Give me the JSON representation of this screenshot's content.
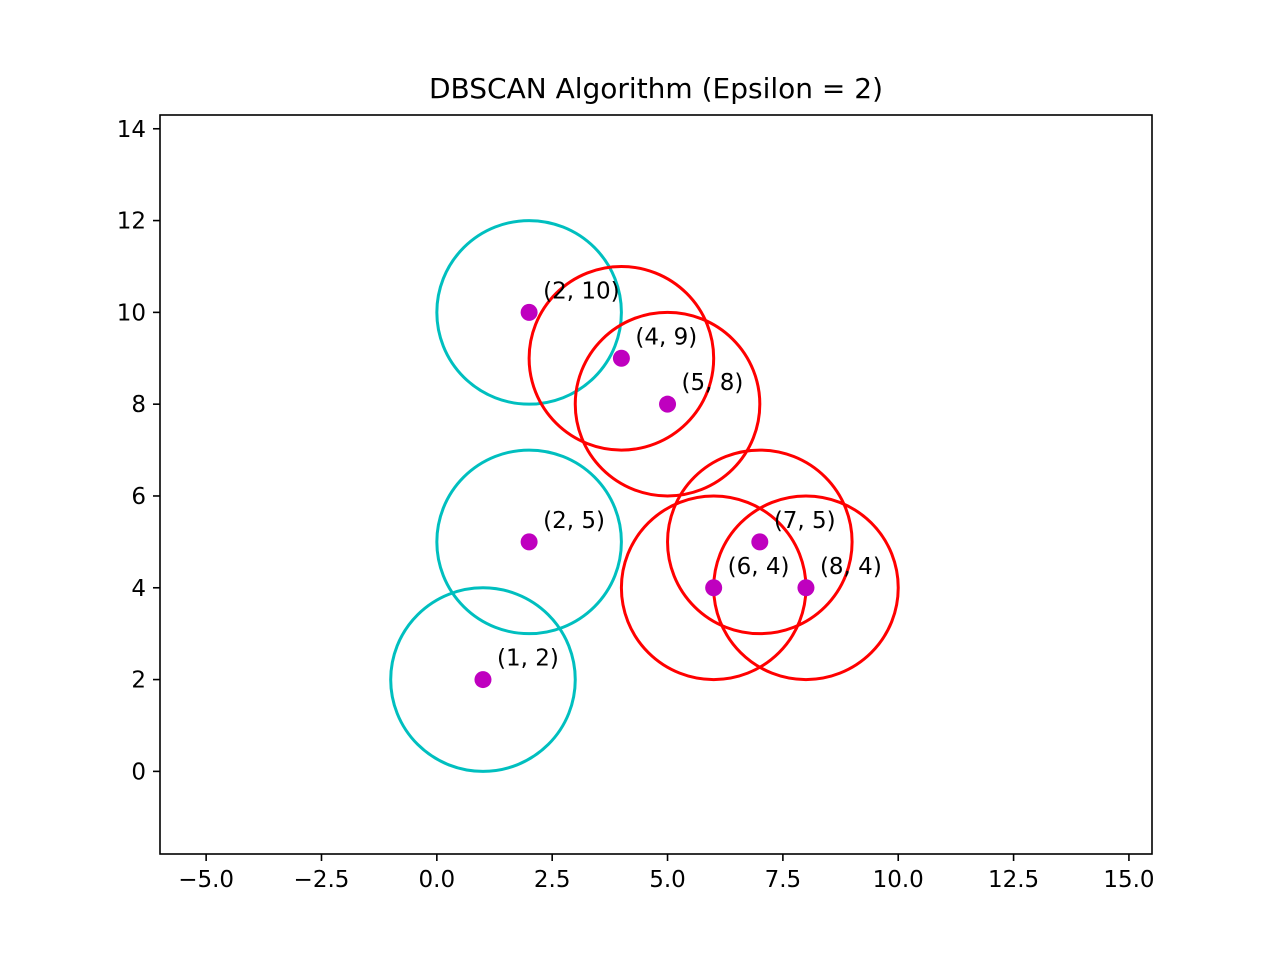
{
  "chart_data": {
    "type": "scatter",
    "title": "DBSCAN Algorithm (Epsilon = 2)",
    "xlabel": "",
    "ylabel": "",
    "epsilon": 2,
    "xlim": [
      -6.0,
      15.5
    ],
    "ylim": [
      -1.8,
      14.3
    ],
    "xticks": [
      -5.0,
      -2.5,
      0.0,
      2.5,
      5.0,
      7.5,
      10.0,
      12.5,
      15.0
    ],
    "xtick_labels": [
      "−5.0",
      "−2.5",
      "0.0",
      "2.5",
      "5.0",
      "7.5",
      "10.0",
      "12.5",
      "15.0"
    ],
    "yticks": [
      0,
      2,
      4,
      6,
      8,
      10,
      12,
      14
    ],
    "ytick_labels": [
      "0",
      "2",
      "4",
      "6",
      "8",
      "10",
      "12",
      "14"
    ],
    "grid": false,
    "point_color": "#bf00bf",
    "points": [
      {
        "x": 2,
        "y": 10,
        "label": "(2, 10)",
        "circle_color": "#00bfbf"
      },
      {
        "x": 2,
        "y": 5,
        "label": "(2, 5)",
        "circle_color": "#00bfbf"
      },
      {
        "x": 1,
        "y": 2,
        "label": "(1, 2)",
        "circle_color": "#00bfbf"
      },
      {
        "x": 4,
        "y": 9,
        "label": "(4, 9)",
        "circle_color": "#ff0000"
      },
      {
        "x": 5,
        "y": 8,
        "label": "(5, 8)",
        "circle_color": "#ff0000"
      },
      {
        "x": 7,
        "y": 5,
        "label": "(7, 5)",
        "circle_color": "#ff0000"
      },
      {
        "x": 6,
        "y": 4,
        "label": "(6, 4)",
        "circle_color": "#ff0000"
      },
      {
        "x": 8,
        "y": 4,
        "label": "(8, 4)",
        "circle_color": "#ff0000"
      }
    ]
  }
}
